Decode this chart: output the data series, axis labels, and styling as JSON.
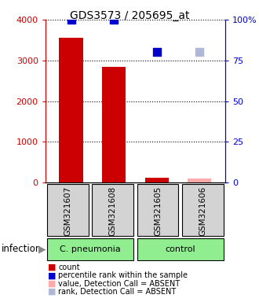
{
  "title": "GDS3573 / 205695_at",
  "samples": [
    "GSM321607",
    "GSM321608",
    "GSM321605",
    "GSM321606"
  ],
  "bar_values": [
    3550,
    2850,
    130,
    100
  ],
  "bar_colors": [
    "#cc0000",
    "#cc0000",
    "#cc0000",
    "#ffaaaa"
  ],
  "percentile_values": [
    100,
    100,
    80,
    80
  ],
  "percentile_colors": [
    "#0000cc",
    "#0000cc",
    "#0000cc",
    "#b0b8d8"
  ],
  "ylim_left": [
    0,
    4000
  ],
  "ylim_right": [
    0,
    100
  ],
  "yticks_left": [
    0,
    1000,
    2000,
    3000,
    4000
  ],
  "yticks_right": [
    0,
    25,
    50,
    75,
    100
  ],
  "ytick_labels_left": [
    "0",
    "1000",
    "2000",
    "3000",
    "4000"
  ],
  "ytick_labels_right": [
    "0",
    "25",
    "50",
    "75",
    "100%"
  ],
  "left_axis_color": "#cc0000",
  "right_axis_color": "#0000cc",
  "group_bg_color": "#90ee90",
  "sample_bg_color": "#d3d3d3",
  "groups_unique": [
    {
      "label": "C. pneumonia",
      "start": 0,
      "end": 1
    },
    {
      "label": "control",
      "start": 2,
      "end": 3
    }
  ],
  "infection_label": "infection",
  "bar_width": 0.55,
  "dot_size": 55,
  "legend_items": [
    {
      "color": "#cc0000",
      "label": "count"
    },
    {
      "color": "#0000cc",
      "label": "percentile rank within the sample"
    },
    {
      "color": "#ffaaaa",
      "label": "value, Detection Call = ABSENT"
    },
    {
      "color": "#b0b8d8",
      "label": "rank, Detection Call = ABSENT"
    }
  ]
}
